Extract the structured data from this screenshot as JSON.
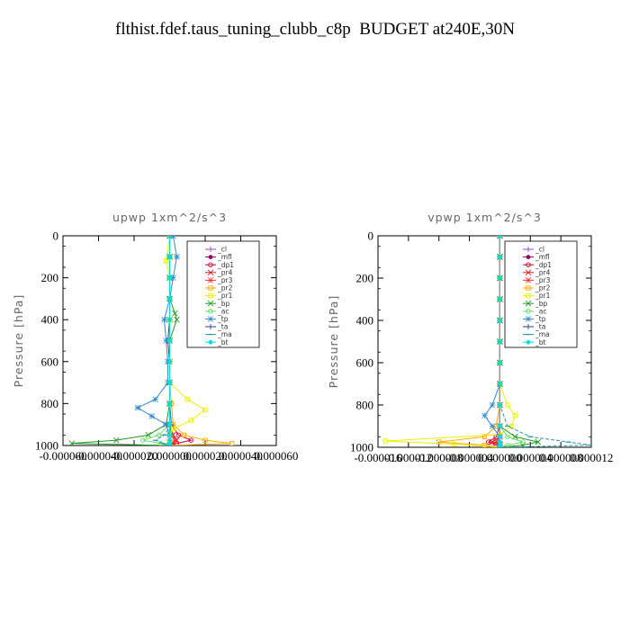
{
  "title": "flthist.fdef.taus_tuning_clubb_c8p  BUDGET at240E,30N",
  "chart_data": [
    {
      "type": "line",
      "title": "upwp   1xm^2/s^3",
      "ylabel": "Pressure [hPa]",
      "xlabel": "",
      "ylim": [
        1000,
        0
      ],
      "yticks": [
        "0",
        "200",
        "400",
        "600",
        "800",
        "1000"
      ],
      "xticks": [
        "-0.000060",
        "-0.000040",
        "-0.000020",
        "0.000000",
        "0.000020",
        "0.000040",
        "0.000060"
      ],
      "xlim": [
        -6e-05,
        6e-05
      ],
      "legend_position": "top-right",
      "series": [
        {
          "name": "_cl",
          "color": "#9944cc",
          "marker": "plus",
          "x": [
            0,
            0,
            0,
            0,
            0,
            0,
            0,
            0,
            0,
            0,
            0,
            0,
            0,
            0
          ],
          "y": [
            0,
            100,
            200,
            300,
            400,
            500,
            600,
            700,
            800,
            900,
            950,
            975,
            990,
            1000
          ]
        },
        {
          "name": "_mfl",
          "color": "#990066",
          "marker": "dot",
          "x": [
            0,
            0,
            0,
            0,
            0,
            0,
            0,
            0,
            0,
            0,
            0,
            0,
            0,
            0
          ],
          "y": [
            0,
            100,
            200,
            300,
            400,
            500,
            600,
            700,
            800,
            900,
            950,
            975,
            990,
            1000
          ]
        },
        {
          "name": "_dp1",
          "color": "#cc0033",
          "marker": "circle",
          "x": [
            0,
            0,
            0,
            0,
            0,
            -1e-06,
            0,
            0,
            0,
            1e-06,
            5e-06,
            1.2e-05,
            4e-06,
            0
          ],
          "y": [
            0,
            100,
            200,
            300,
            400,
            500,
            600,
            700,
            800,
            900,
            950,
            975,
            990,
            1000
          ]
        },
        {
          "name": "_pr4",
          "color": "#cc2222",
          "marker": "cross",
          "x": [
            0,
            0,
            0,
            0,
            0,
            0,
            0,
            0,
            0,
            0,
            2e-06,
            4e-06,
            2e-06,
            0
          ],
          "y": [
            0,
            100,
            200,
            300,
            400,
            500,
            600,
            700,
            800,
            900,
            950,
            975,
            990,
            1000
          ]
        },
        {
          "name": "_pr3",
          "color": "#ff3333",
          "marker": "star",
          "x": [
            0,
            0,
            0,
            0,
            0,
            0,
            0,
            0,
            0,
            0,
            1e-06,
            3e-06,
            1e-06,
            0
          ],
          "y": [
            0,
            100,
            200,
            300,
            400,
            500,
            600,
            700,
            800,
            900,
            950,
            975,
            990,
            1000
          ]
        },
        {
          "name": "_pr2",
          "color": "#ffaa00",
          "marker": "square",
          "x": [
            0,
            0,
            0,
            0,
            0,
            0,
            0,
            0,
            1e-06,
            2e-06,
            8e-06,
            2e-05,
            3.5e-05,
            0
          ],
          "y": [
            0,
            100,
            200,
            300,
            400,
            500,
            600,
            700,
            800,
            900,
            950,
            975,
            990,
            1000
          ]
        },
        {
          "name": "_pr1",
          "color": "#eeee00",
          "marker": "square",
          "x": [
            0,
            -2e-06,
            0,
            0,
            0,
            0,
            0,
            0,
            1e-05,
            2e-05,
            1.2e-05,
            2e-06,
            0,
            0,
            0
          ],
          "y": [
            0,
            120,
            200,
            300,
            400,
            500,
            600,
            700,
            780,
            830,
            880,
            920,
            950,
            990,
            1000
          ]
        },
        {
          "name": "_bp",
          "color": "#229922",
          "marker": "cross",
          "x": [
            0,
            0,
            0,
            0,
            3e-06,
            4e-06,
            0,
            0,
            0,
            -2e-06,
            -1.2e-05,
            -3e-05,
            -5.5e-05,
            0
          ],
          "y": [
            0,
            100,
            200,
            300,
            370,
            400,
            500,
            700,
            800,
            900,
            950,
            975,
            990,
            1000
          ]
        },
        {
          "name": "_ac",
          "color": "#66dd66",
          "marker": "circle",
          "x": [
            0,
            0,
            0,
            0,
            0,
            0,
            0,
            0,
            0,
            0,
            -6e-06,
            -1.5e-05,
            -5e-06,
            0
          ],
          "y": [
            0,
            100,
            200,
            300,
            400,
            500,
            600,
            700,
            800,
            900,
            950,
            975,
            990,
            1000
          ]
        },
        {
          "name": "_tp",
          "color": "#3388cc",
          "marker": "star",
          "x": [
            2e-06,
            4e-06,
            2e-06,
            0,
            -3e-06,
            -2e-06,
            -1e-06,
            -1e-06,
            -8e-06,
            -1.8e-05,
            -1e-05,
            -2e-06,
            0,
            0
          ],
          "y": [
            0,
            100,
            200,
            300,
            400,
            500,
            600,
            700,
            780,
            820,
            860,
            900,
            950,
            1000
          ]
        },
        {
          "name": "_ta",
          "color": "#224488",
          "marker": "plus",
          "x": [
            0,
            0,
            0,
            0,
            0,
            0,
            0,
            0,
            0,
            0,
            0,
            0,
            0,
            0
          ],
          "y": [
            0,
            100,
            200,
            300,
            400,
            500,
            600,
            700,
            800,
            900,
            950,
            975,
            990,
            1000
          ]
        },
        {
          "name": "_ma",
          "color": "#2299aa",
          "marker": "dash",
          "x": [
            0,
            0,
            0,
            0,
            0,
            0,
            0,
            0,
            0,
            1e-06,
            -3e-06,
            -8e-06,
            -4e-06,
            0
          ],
          "y": [
            0,
            100,
            200,
            300,
            400,
            500,
            600,
            700,
            800,
            900,
            950,
            975,
            990,
            1000
          ]
        },
        {
          "name": "_bt",
          "color": "#00dddd",
          "marker": "diamond",
          "x": [
            0,
            0,
            0,
            0,
            0,
            0,
            0,
            0,
            0,
            0,
            0,
            0,
            0,
            0
          ],
          "y": [
            0,
            100,
            200,
            300,
            400,
            500,
            600,
            700,
            800,
            900,
            950,
            975,
            990,
            1000
          ]
        }
      ]
    },
    {
      "type": "line",
      "title": "vpwp   1xm^2/s^3",
      "ylabel": "Pressure [hPa]",
      "xlabel": "",
      "ylim": [
        1000,
        0
      ],
      "yticks": [
        "0",
        "200",
        "400",
        "600",
        "800",
        "1000"
      ],
      "xticks": [
        "-0.000016",
        "-0.000012",
        "-0.000008",
        "-0.000004",
        "0.000000",
        "0.000004",
        "0.000008",
        "0.000012"
      ],
      "xlim": [
        -1.6e-05,
        1.2e-05
      ],
      "legend_position": "top-right",
      "series": [
        {
          "name": "_cl",
          "color": "#9944cc",
          "marker": "plus",
          "x": [
            0,
            0,
            0,
            0,
            0,
            0,
            0,
            0,
            0,
            0,
            0,
            0,
            0,
            0
          ],
          "y": [
            0,
            100,
            200,
            300,
            400,
            500,
            600,
            700,
            800,
            900,
            950,
            975,
            990,
            1000
          ]
        },
        {
          "name": "_mfl",
          "color": "#990066",
          "marker": "dot",
          "x": [
            0,
            0,
            0,
            0,
            0,
            0,
            0,
            0,
            0,
            0,
            0,
            0,
            0,
            0
          ],
          "y": [
            0,
            100,
            200,
            300,
            400,
            500,
            600,
            700,
            800,
            900,
            950,
            975,
            990,
            1000
          ]
        },
        {
          "name": "_dp1",
          "color": "#cc0033",
          "marker": "circle",
          "x": [
            0,
            0,
            0,
            0,
            0,
            0,
            0,
            0,
            0,
            0,
            -5e-07,
            -1.5e-06,
            -5e-07,
            0
          ],
          "y": [
            0,
            100,
            200,
            300,
            400,
            500,
            600,
            700,
            800,
            900,
            950,
            975,
            990,
            1000
          ]
        },
        {
          "name": "_pr4",
          "color": "#cc2222",
          "marker": "cross",
          "x": [
            0,
            0,
            0,
            0,
            0,
            0,
            0,
            0,
            0,
            0,
            0,
            -1e-06,
            0,
            0
          ],
          "y": [
            0,
            100,
            200,
            300,
            400,
            500,
            600,
            700,
            800,
            900,
            950,
            975,
            990,
            1000
          ]
        },
        {
          "name": "_pr3",
          "color": "#ff3333",
          "marker": "star",
          "x": [
            0,
            0,
            0,
            0,
            0,
            0,
            0,
            0,
            0,
            0,
            0,
            -5e-07,
            0,
            0
          ],
          "y": [
            0,
            100,
            200,
            300,
            400,
            500,
            600,
            700,
            800,
            900,
            950,
            975,
            990,
            1000
          ]
        },
        {
          "name": "_pr2",
          "color": "#ffaa00",
          "marker": "square",
          "x": [
            0,
            0,
            0,
            0,
            0,
            0,
            0,
            0,
            0,
            -5e-07,
            -2e-06,
            -8e-06,
            -2e-06,
            0
          ],
          "y": [
            0,
            100,
            200,
            300,
            400,
            500,
            600,
            700,
            800,
            900,
            950,
            975,
            990,
            1000
          ]
        },
        {
          "name": "_pr1",
          "color": "#eeee00",
          "marker": "square",
          "x": [
            0,
            0,
            0,
            0,
            0,
            0,
            0,
            0,
            1e-06,
            2e-06,
            1.5e-06,
            0,
            -1.5e-05,
            -6e-06,
            0
          ],
          "y": [
            0,
            100,
            200,
            300,
            400,
            500,
            600,
            700,
            800,
            850,
            900,
            940,
            970,
            985,
            1000
          ]
        },
        {
          "name": "_bp",
          "color": "#229922",
          "marker": "cross",
          "x": [
            0,
            0,
            0,
            0,
            0,
            0,
            0,
            0,
            0,
            0,
            2e-06,
            5e-06,
            3e-06,
            0
          ],
          "y": [
            0,
            100,
            200,
            300,
            400,
            500,
            600,
            700,
            800,
            900,
            950,
            975,
            990,
            1000
          ]
        },
        {
          "name": "_ac",
          "color": "#66dd66",
          "marker": "circle",
          "x": [
            0,
            0,
            0,
            0,
            0,
            0,
            0,
            0,
            0,
            0,
            1e-06,
            3e-06,
            1e-06,
            0
          ],
          "y": [
            0,
            100,
            200,
            300,
            400,
            500,
            600,
            700,
            800,
            900,
            950,
            975,
            990,
            1000
          ]
        },
        {
          "name": "_tp",
          "color": "#3388cc",
          "marker": "star",
          "x": [
            0,
            0,
            0,
            0,
            0,
            0,
            0,
            0,
            -1e-06,
            -2e-06,
            -1e-06,
            0,
            0,
            0
          ],
          "y": [
            0,
            100,
            200,
            300,
            400,
            500,
            600,
            700,
            800,
            850,
            900,
            950,
            990,
            1000
          ]
        },
        {
          "name": "_ta",
          "color": "#224488",
          "marker": "plus",
          "x": [
            0,
            0,
            0,
            0,
            0,
            0,
            0,
            0,
            0,
            0,
            0,
            0,
            0,
            0
          ],
          "y": [
            0,
            100,
            200,
            300,
            400,
            500,
            600,
            700,
            800,
            900,
            950,
            975,
            990,
            1000
          ]
        },
        {
          "name": "_ma",
          "color": "#2299aa",
          "marker": "dash",
          "x": [
            0,
            0,
            0,
            0,
            0,
            0,
            0,
            0,
            0,
            1e-06,
            4e-06,
            9e-06,
            1.2e-05,
            0
          ],
          "y": [
            0,
            100,
            200,
            300,
            400,
            500,
            600,
            700,
            800,
            900,
            950,
            975,
            990,
            1000
          ]
        },
        {
          "name": "_bt",
          "color": "#00dddd",
          "marker": "diamond",
          "x": [
            0,
            0,
            0,
            0,
            0,
            0,
            0,
            0,
            0,
            0,
            0,
            0,
            0,
            0
          ],
          "y": [
            0,
            100,
            200,
            300,
            400,
            500,
            600,
            700,
            800,
            900,
            950,
            975,
            990,
            1000
          ]
        }
      ]
    }
  ]
}
